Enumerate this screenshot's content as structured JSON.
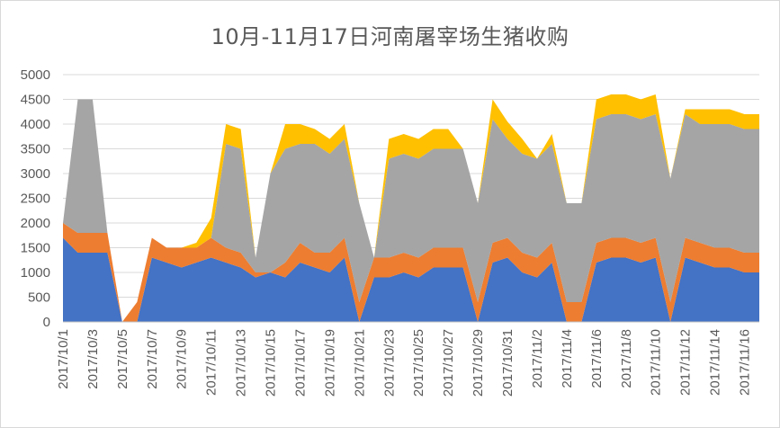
{
  "chart_data": {
    "type": "area",
    "stacked": true,
    "title": "10月-11月17日河南屠宰场生猪收购",
    "xlabel": "",
    "ylabel": "",
    "ylim": [
      0,
      5000
    ],
    "yticks": [
      0,
      500,
      1000,
      1500,
      2000,
      2500,
      3000,
      3500,
      4000,
      4500,
      5000
    ],
    "grid": true,
    "legend": "none",
    "x": [
      "2017/10/1",
      "2017/10/2",
      "2017/10/3",
      "2017/10/4",
      "2017/10/5",
      "2017/10/6",
      "2017/10/7",
      "2017/10/8",
      "2017/10/9",
      "2017/10/10",
      "2017/10/11",
      "2017/10/12",
      "2017/10/13",
      "2017/10/14",
      "2017/10/15",
      "2017/10/16",
      "2017/10/17",
      "2017/10/18",
      "2017/10/19",
      "2017/10/20",
      "2017/10/21",
      "2017/10/22",
      "2017/10/23",
      "2017/10/24",
      "2017/10/25",
      "2017/10/26",
      "2017/10/27",
      "2017/10/28",
      "2017/10/29",
      "2017/10/30",
      "2017/10/31",
      "2017/11/1",
      "2017/11/2",
      "2017/11/3",
      "2017/11/4",
      "2017/11/5",
      "2017/11/6",
      "2017/11/7",
      "2017/11/8",
      "2017/11/9",
      "2017/11/10",
      "2017/11/11",
      "2017/11/12",
      "2017/11/13",
      "2017/11/14",
      "2017/11/15",
      "2017/11/16",
      "2017/11/17"
    ],
    "xtick_labels": [
      "2017/10/1",
      "2017/10/3",
      "2017/10/5",
      "2017/10/7",
      "2017/10/9",
      "2017/10/11",
      "2017/10/13",
      "2017/10/15",
      "2017/10/17",
      "2017/10/19",
      "2017/10/21",
      "2017/10/23",
      "2017/10/25",
      "2017/10/27",
      "2017/10/29",
      "2017/10/31",
      "2017/11/2",
      "2017/11/4",
      "2017/11/6",
      "2017/11/8",
      "2017/11/10",
      "2017/11/12",
      "2017/11/14",
      "2017/11/16"
    ],
    "series": [
      {
        "color": "#4472c4",
        "values": [
          1700,
          1400,
          1400,
          1400,
          0,
          0,
          1300,
          1200,
          1100,
          1200,
          1300,
          1200,
          1100,
          900,
          1000,
          900,
          1200,
          1100,
          1000,
          1300,
          0,
          900,
          900,
          1000,
          900,
          1100,
          1100,
          1100,
          0,
          1200,
          1300,
          1000,
          900,
          1200,
          0,
          0,
          1200,
          1300,
          1300,
          1200,
          1300,
          0,
          1300,
          1200,
          1100,
          1100,
          1000,
          1000
        ]
      },
      {
        "color": "#ed7d31",
        "values": [
          300,
          400,
          400,
          400,
          0,
          400,
          400,
          300,
          400,
          300,
          400,
          300,
          300,
          100,
          0,
          300,
          400,
          300,
          400,
          400,
          400,
          400,
          400,
          400,
          400,
          400,
          400,
          400,
          400,
          400,
          400,
          400,
          400,
          400,
          400,
          400,
          400,
          400,
          400,
          400,
          400,
          400,
          400,
          400,
          400,
          400,
          400,
          400
        ]
      },
      {
        "color": "#a5a5a5",
        "values": [
          0,
          2700,
          2700,
          0,
          0,
          0,
          0,
          0,
          0,
          0,
          0,
          2100,
          2100,
          300,
          2000,
          2300,
          2000,
          2200,
          2000,
          2000,
          2000,
          0,
          2000,
          2000,
          2000,
          2000,
          2000,
          2000,
          2000,
          2500,
          2000,
          2000,
          2000,
          2000,
          2000,
          2000,
          2500,
          2500,
          2500,
          2500,
          2500,
          2500,
          2500,
          2400,
          2500,
          2500,
          2500,
          2500
        ]
      },
      {
        "color": "#ffc000",
        "values": [
          0,
          0,
          0,
          0,
          0,
          0,
          0,
          0,
          0,
          100,
          400,
          400,
          400,
          0,
          0,
          500,
          400,
          300,
          300,
          300,
          0,
          0,
          400,
          400,
          400,
          400,
          400,
          0,
          0,
          400,
          350,
          300,
          0,
          200,
          0,
          0,
          400,
          400,
          400,
          400,
          400,
          0,
          100,
          300,
          300,
          300,
          300,
          300
        ]
      }
    ]
  }
}
